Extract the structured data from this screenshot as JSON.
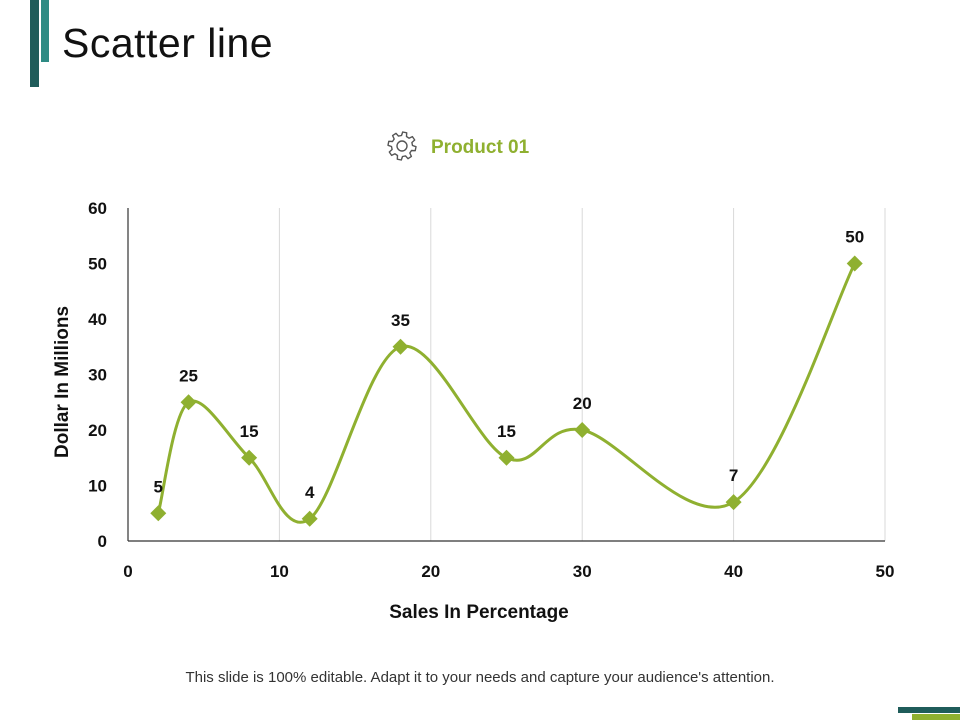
{
  "slide": {
    "title": "Scatter line",
    "footer": "This slide is 100% editable. Adapt it to your needs and capture your audience's attention."
  },
  "colors": {
    "series": "#8fb030",
    "accent_dark": "#1f5c5a",
    "accent_teal": "#2e8b84",
    "grid": "#d9d9d9"
  },
  "legend_icon": "gear-icon",
  "chart_data": {
    "type": "scatter",
    "xlabel": "Sales In Percentage",
    "ylabel": "Dollar In Millions",
    "xlim": [
      0,
      50
    ],
    "ylim": [
      0,
      60
    ],
    "x_ticks": [
      0,
      10,
      20,
      30,
      40,
      50
    ],
    "y_ticks": [
      0,
      10,
      20,
      30,
      40,
      50,
      60
    ],
    "grid": "vertical",
    "legend": "top-center",
    "line": "smooth",
    "marker": "diamond",
    "series": [
      {
        "name": "Product 01",
        "points": [
          {
            "x": 2,
            "y": 5
          },
          {
            "x": 4,
            "y": 25
          },
          {
            "x": 8,
            "y": 15
          },
          {
            "x": 12,
            "y": 4
          },
          {
            "x": 18,
            "y": 35
          },
          {
            "x": 25,
            "y": 15
          },
          {
            "x": 30,
            "y": 20
          },
          {
            "x": 40,
            "y": 7
          },
          {
            "x": 48,
            "y": 50
          }
        ]
      }
    ]
  }
}
